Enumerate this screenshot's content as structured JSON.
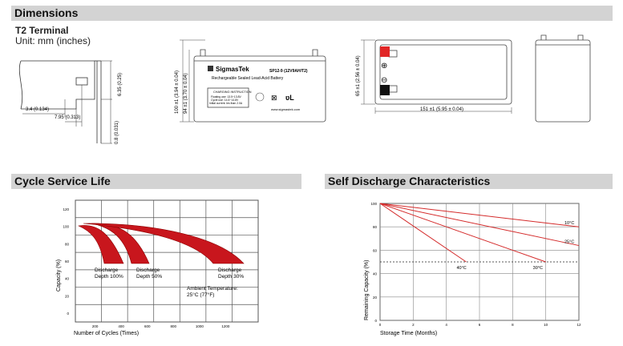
{
  "dimensions": {
    "header": "Dimensions",
    "terminal_title": "T2 Terminal",
    "unit_label": "Unit: mm (inches)",
    "terminal_dims": {
      "width_a": "3.4 (0.134)",
      "width_b": "7.95 (0.313)",
      "height": "6.35 (0.25)",
      "thickness": "0.8 (0.031)"
    },
    "battery_front": {
      "brand": "SigmasTek",
      "model": "SP12-9 (12V9AH/T2)",
      "subtitle": "Rechargeable Sealed Lead-Acid Battery",
      "charging_title": "CHARGING INSTRUCTION",
      "charging_lines": [
        "Floating use: 13.5~13.8V",
        "Cycle use: 14.6~14.8V",
        "Initial current: les than 2.0A"
      ],
      "website": "www.sigmastek.com",
      "height_overall": "100 ±1 (3.94 ± 0.04)",
      "height_case": "94 ±1 (3.70 ± 0.04)"
    },
    "battery_top": {
      "depth": "65 ±1 (2.56 ± 0.04)",
      "length": "151 ±1 (5.95 ± 0.04)",
      "plus_symbol": "⊕",
      "minus_symbol": "⊖"
    }
  },
  "cycle_life": {
    "header": "Cycle Service Life",
    "ylabel": "Capacity (%)",
    "xlabel": "Number of Cycles (Times)",
    "yticks": [
      "0",
      "20",
      "40",
      "60",
      "80",
      "100",
      "120"
    ],
    "xticks": [
      "200",
      "400",
      "600",
      "800",
      "1000",
      "1200"
    ],
    "labels": {
      "d100": [
        "Discharge",
        "Depth 100%"
      ],
      "d50": [
        "Discharge",
        "Depth 50%"
      ],
      "d30": [
        "Discharge",
        "Depth 30%"
      ],
      "ambient": [
        "Ambient Temperature:",
        "25°C (77°F)"
      ]
    },
    "colors": {
      "band": "#c8161d",
      "curve": "#8b0000",
      "grid": "#555555"
    }
  },
  "self_discharge": {
    "header": "Self Discharge Characteristics",
    "ylabel": "Remaining Capacity (%)",
    "xlabel": "Storage Time (Months)",
    "chart_data": {
      "type": "line",
      "xlim": [
        0,
        12
      ],
      "ylim": [
        0,
        100
      ],
      "xticks": [
        "0",
        "2",
        "4",
        "6",
        "8",
        "10",
        "12"
      ],
      "yticks": [
        "0",
        "20",
        "40",
        "60",
        "80",
        "100"
      ],
      "series": [
        {
          "name": "10°C",
          "x": [
            0,
            12
          ],
          "y": [
            100,
            80
          ]
        },
        {
          "name": "25°C",
          "x": [
            0,
            12
          ],
          "y": [
            100,
            64
          ]
        },
        {
          "name": "30°C",
          "x": [
            0,
            10
          ],
          "y": [
            100,
            50
          ]
        },
        {
          "name": "40°C",
          "x": [
            0,
            5.2
          ],
          "y": [
            100,
            50
          ]
        }
      ],
      "reference_line_y": 50,
      "grid": true,
      "line_color": "#d42a2a"
    }
  }
}
